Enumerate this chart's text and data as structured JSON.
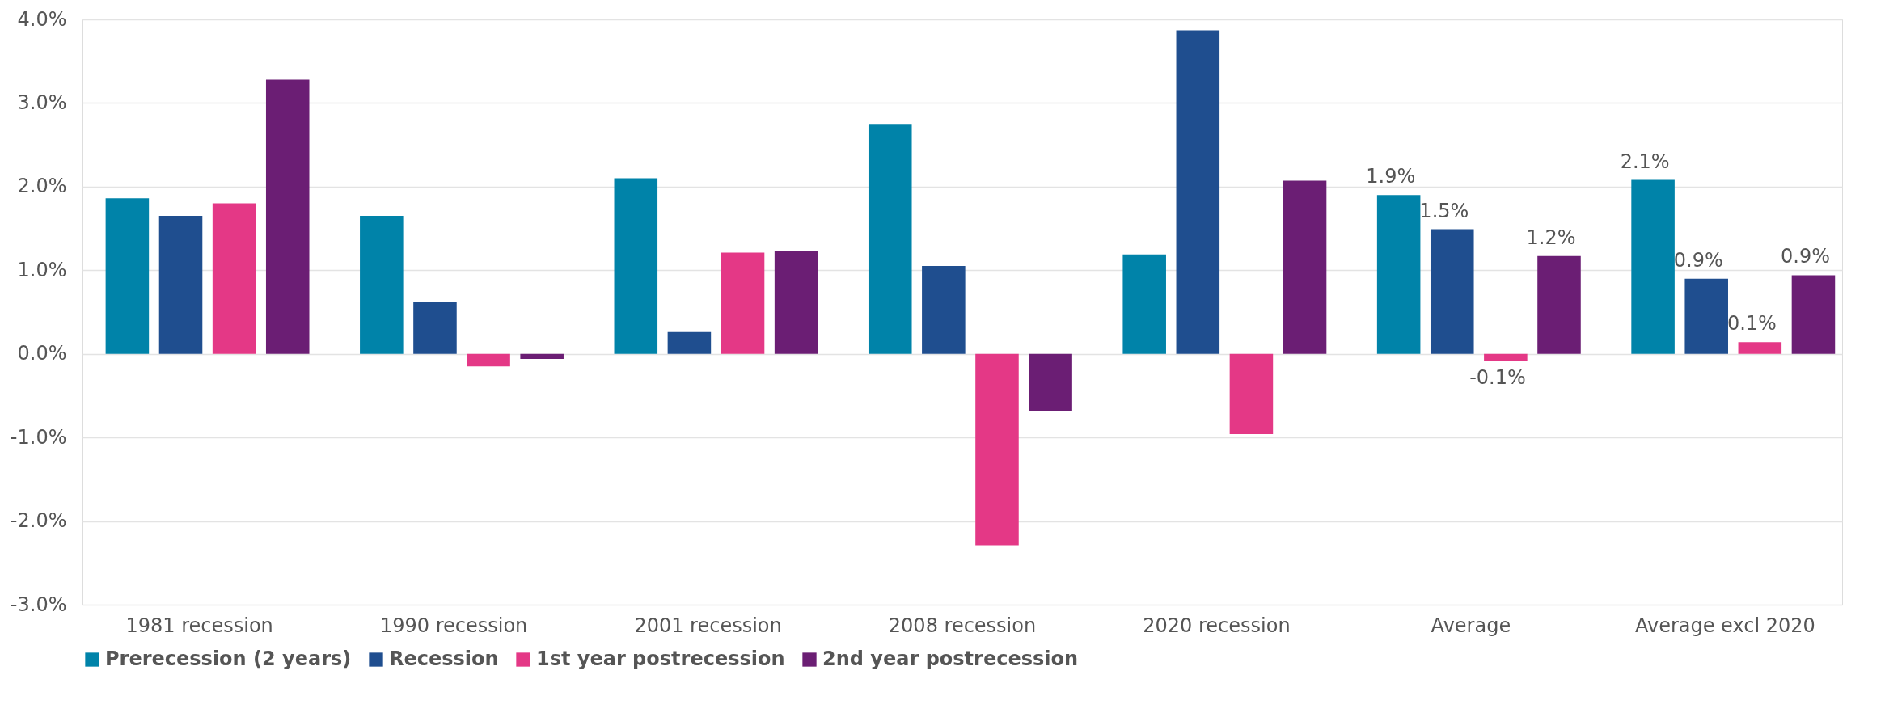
{
  "chart_data": {
    "type": "bar",
    "categories": [
      "1981 recession",
      "1990 recession",
      "2001 recession",
      "2008 recession",
      "2020 recession",
      "Average",
      "Average excl 2020"
    ],
    "series": [
      {
        "name": "Prerecession (2 years)",
        "color": "#0083a9",
        "values": [
          1.86,
          1.65,
          2.1,
          2.74,
          1.19,
          1.9,
          2.08
        ],
        "value_labels": [
          null,
          null,
          null,
          null,
          null,
          "1.9%",
          "2.1%"
        ]
      },
      {
        "name": "Recession",
        "color": "#1f4e8f",
        "values": [
          1.65,
          0.62,
          0.26,
          1.05,
          3.87,
          1.49,
          0.9
        ],
        "value_labels": [
          null,
          null,
          null,
          null,
          null,
          "1.5%",
          "0.9%"
        ]
      },
      {
        "name": "1st year postrecession",
        "color": "#e43886",
        "values": [
          1.8,
          -0.15,
          1.21,
          -2.29,
          -0.96,
          -0.08,
          0.14
        ],
        "value_labels": [
          null,
          null,
          null,
          null,
          null,
          "-0.1%",
          "0.1%"
        ]
      },
      {
        "name": "2nd year postrecession",
        "color": "#6b1e74",
        "values": [
          3.28,
          -0.06,
          1.23,
          -0.68,
          2.07,
          1.17,
          0.94
        ],
        "value_labels": [
          null,
          null,
          null,
          null,
          null,
          "1.2%",
          "0.9%"
        ]
      }
    ],
    "ylim": [
      -3,
      4
    ],
    "yticks": [
      {
        "value": -3,
        "label": "-3.0%"
      },
      {
        "value": -2,
        "label": "-2.0%"
      },
      {
        "value": -1,
        "label": "-1.0%"
      },
      {
        "value": 0,
        "label": "0.0%"
      },
      {
        "value": 1,
        "label": "1.0%"
      },
      {
        "value": 2,
        "label": "2.0%"
      },
      {
        "value": 3,
        "label": "3.0%"
      },
      {
        "value": 4,
        "label": "4.0%"
      }
    ],
    "grid": "y",
    "legend": "bottom"
  }
}
